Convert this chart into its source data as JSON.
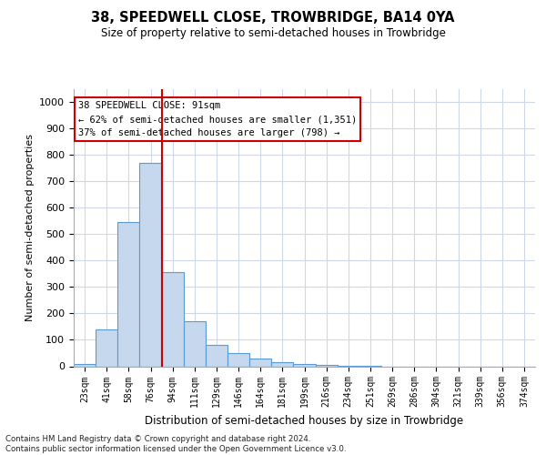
{
  "title_line1": "38, SPEEDWELL CLOSE, TROWBRIDGE, BA14 0YA",
  "title_line2": "Size of property relative to semi-detached houses in Trowbridge",
  "xlabel": "Distribution of semi-detached houses by size in Trowbridge",
  "ylabel": "Number of semi-detached properties",
  "categories": [
    "23sqm",
    "41sqm",
    "58sqm",
    "76sqm",
    "94sqm",
    "111sqm",
    "129sqm",
    "146sqm",
    "164sqm",
    "181sqm",
    "199sqm",
    "216sqm",
    "234sqm",
    "251sqm",
    "269sqm",
    "286sqm",
    "304sqm",
    "321sqm",
    "339sqm",
    "356sqm",
    "374sqm"
  ],
  "values": [
    7,
    140,
    545,
    770,
    355,
    170,
    80,
    50,
    30,
    15,
    10,
    5,
    2,
    1,
    0,
    0,
    0,
    0,
    0,
    0,
    0
  ],
  "bar_color": "#c5d8ed",
  "bar_edge_color": "#5b9bd5",
  "vline_color": "#cc0000",
  "annotation_text": "38 SPEEDWELL CLOSE: 91sqm\n← 62% of semi-detached houses are smaller (1,351)\n37% of semi-detached houses are larger (798) →",
  "annotation_box_color": "#ffffff",
  "annotation_box_edge_color": "#cc0000",
  "ylim": [
    0,
    1050
  ],
  "yticks": [
    0,
    100,
    200,
    300,
    400,
    500,
    600,
    700,
    800,
    900,
    1000
  ],
  "footer_text": "Contains HM Land Registry data © Crown copyright and database right 2024.\nContains public sector information licensed under the Open Government Licence v3.0.",
  "background_color": "#ffffff",
  "grid_color": "#d0d8e8"
}
